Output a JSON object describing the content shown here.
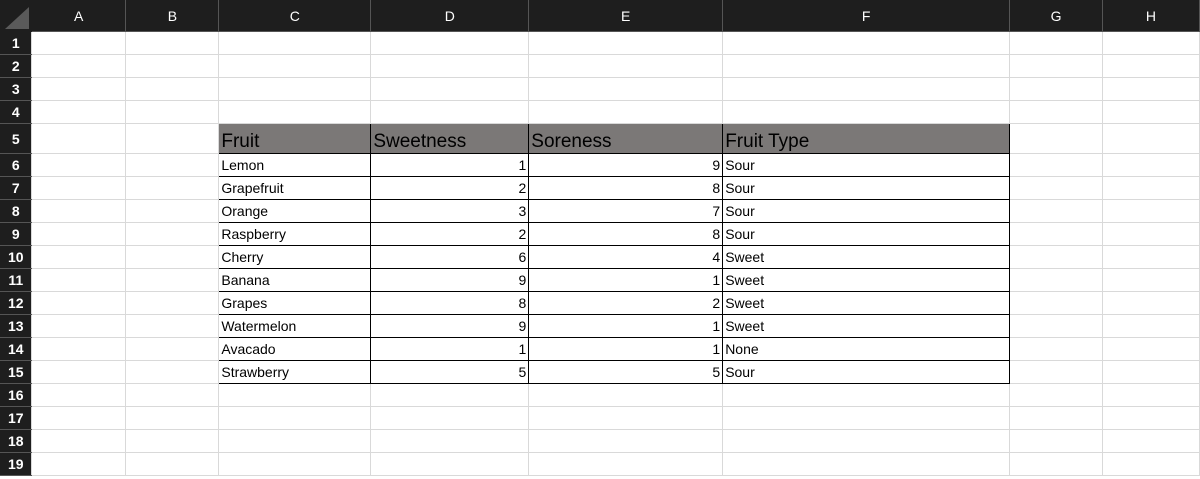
{
  "columns": [
    "A",
    "B",
    "C",
    "D",
    "E",
    "F",
    "G",
    "H"
  ],
  "rows": [
    "1",
    "2",
    "3",
    "4",
    "5",
    "6",
    "7",
    "8",
    "9",
    "10",
    "11",
    "12",
    "13",
    "14",
    "15",
    "16",
    "17",
    "18",
    "19"
  ],
  "table": {
    "headers": [
      "Fruit",
      "Sweetness",
      "Soreness",
      "Fruit Type"
    ],
    "header_color": "#7b7877",
    "data": [
      [
        "Lemon",
        "1",
        "9",
        "Sour"
      ],
      [
        "Grapefruit",
        "2",
        "8",
        "Sour"
      ],
      [
        "Orange",
        "3",
        "7",
        "Sour"
      ],
      [
        "Raspberry",
        "2",
        "8",
        "Sour"
      ],
      [
        "Cherry",
        "6",
        "4",
        "Sweet"
      ],
      [
        "Banana",
        "9",
        "1",
        "Sweet"
      ],
      [
        "Grapes",
        "8",
        "2",
        "Sweet"
      ],
      [
        "Watermelon",
        "9",
        "1",
        "Sweet"
      ],
      [
        "Avacado",
        "1",
        "1",
        "None"
      ],
      [
        "Strawberry",
        "5",
        "5",
        "Sour"
      ]
    ]
  }
}
